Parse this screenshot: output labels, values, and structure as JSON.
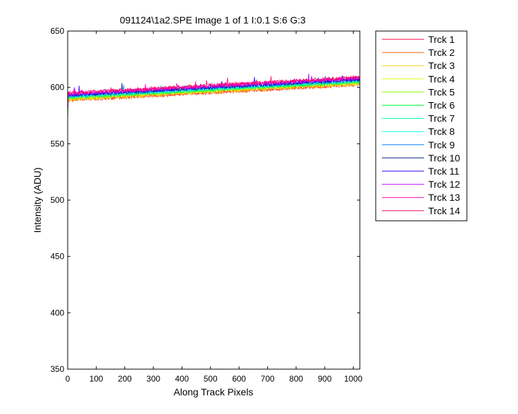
{
  "chart_data": {
    "type": "line",
    "title": "091124\\1a2.SPE  Image 1 of 1  I:0.1  S:6  G:3",
    "xlabel": "Along Track Pixels",
    "ylabel": "Intensity (ADU)",
    "xlim": [
      0,
      1023
    ],
    "ylim": [
      350,
      650
    ],
    "xticks": [
      0,
      100,
      200,
      300,
      400,
      500,
      600,
      700,
      800,
      900,
      1000
    ],
    "yticks": [
      350,
      400,
      450,
      500,
      550,
      600,
      650
    ],
    "grid": false,
    "legend_position": "outside-right",
    "series": [
      {
        "name": "Trck 1",
        "color": "#ff0040",
        "start": 589.0,
        "end": 603.0
      },
      {
        "name": "Trck 2",
        "color": "#ff6000",
        "start": 588.5,
        "end": 602.5
      },
      {
        "name": "Trck 3",
        "color": "#ffcc00",
        "start": 589.5,
        "end": 603.5
      },
      {
        "name": "Trck 4",
        "color": "#e0ff00",
        "start": 590.0,
        "end": 604.0
      },
      {
        "name": "Trck 5",
        "color": "#80ff00",
        "start": 590.5,
        "end": 604.5
      },
      {
        "name": "Trck 6",
        "color": "#00ff40",
        "start": 591.0,
        "end": 605.0
      },
      {
        "name": "Trck 7",
        "color": "#00ffa0",
        "start": 591.5,
        "end": 605.5
      },
      {
        "name": "Trck 8",
        "color": "#00ffff",
        "start": 592.0,
        "end": 606.0
      },
      {
        "name": "Trck 9",
        "color": "#0080ff",
        "start": 592.5,
        "end": 606.5
      },
      {
        "name": "Trck 10",
        "color": "#001a80",
        "start": 593.0,
        "end": 607.0
      },
      {
        "name": "Trck 11",
        "color": "#2000ff",
        "start": 593.5,
        "end": 607.5
      },
      {
        "name": "Trck 12",
        "color": "#c000ff",
        "start": 594.0,
        "end": 608.0
      },
      {
        "name": "Trck 13",
        "color": "#ff00c0",
        "start": 594.5,
        "end": 608.5
      },
      {
        "name": "Trck 14",
        "color": "#ff0060",
        "start": 595.0,
        "end": 609.0
      }
    ]
  }
}
